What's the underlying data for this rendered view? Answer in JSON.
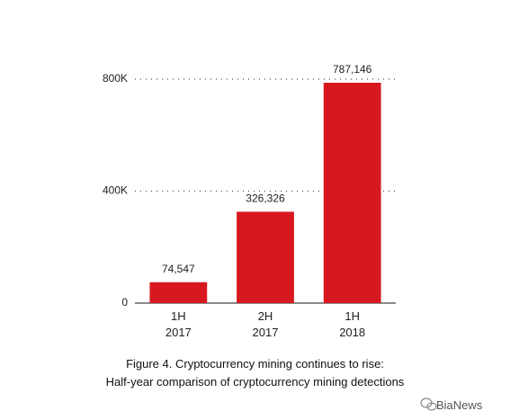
{
  "chart_data": {
    "type": "bar",
    "categories": [
      "1H 2017",
      "2H 2017",
      "1H 2018"
    ],
    "values": [
      74547,
      326326,
      787146
    ],
    "value_labels": [
      "74,547",
      "326,326",
      "787,146"
    ],
    "color": "#d7191f",
    "ylim": [
      0,
      800000
    ],
    "yticks": [
      0,
      {
        "value": 400000,
        "label": "400K"
      },
      {
        "value": 800000,
        "label": "800K"
      }
    ],
    "grid": true,
    "title": "Figure 4. Cryptocurrency mining continues to rise:",
    "subtitle": "Half-year comparison of cryptocurrency mining detections",
    "watermark": "BiaNews"
  }
}
